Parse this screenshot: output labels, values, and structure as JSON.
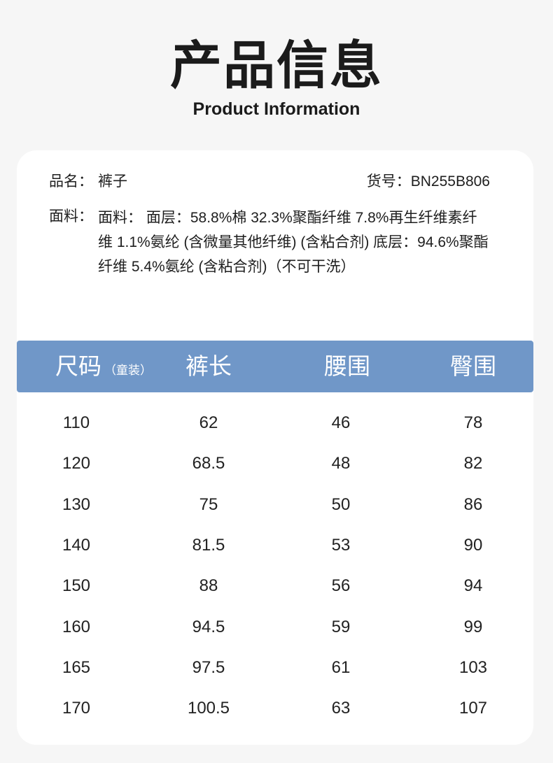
{
  "header": {
    "title": "产品信息",
    "subtitle": "Product Information"
  },
  "info": {
    "name_label": "品名：",
    "name_value": "裤子",
    "sku_label": "货号：",
    "sku_value": "BN255B806",
    "fabric_label": "面料：",
    "fabric_value": "面料： 面层：58.8%棉 32.3%聚酯纤维 7.8%再生纤维素纤维 1.1%氨纶 (含微量其他纤维) (含粘合剂) 底层：94.6%聚酯纤维 5.4%氨纶 (含粘合剂)（不可干洗）"
  },
  "table": {
    "header_color": "#7097c8",
    "columns": [
      "尺码",
      "裤长",
      "腰围",
      "臀围"
    ],
    "size_note": "（童装）",
    "rows": [
      [
        "110",
        "62",
        "46",
        "78"
      ],
      [
        "120",
        "68.5",
        "48",
        "82"
      ],
      [
        "130",
        "75",
        "50",
        "86"
      ],
      [
        "140",
        "81.5",
        "53",
        "90"
      ],
      [
        "150",
        "88",
        "56",
        "94"
      ],
      [
        "160",
        "94.5",
        "59",
        "99"
      ],
      [
        "165",
        "97.5",
        "61",
        "103"
      ],
      [
        "170",
        "100.5",
        "63",
        "107"
      ]
    ]
  }
}
